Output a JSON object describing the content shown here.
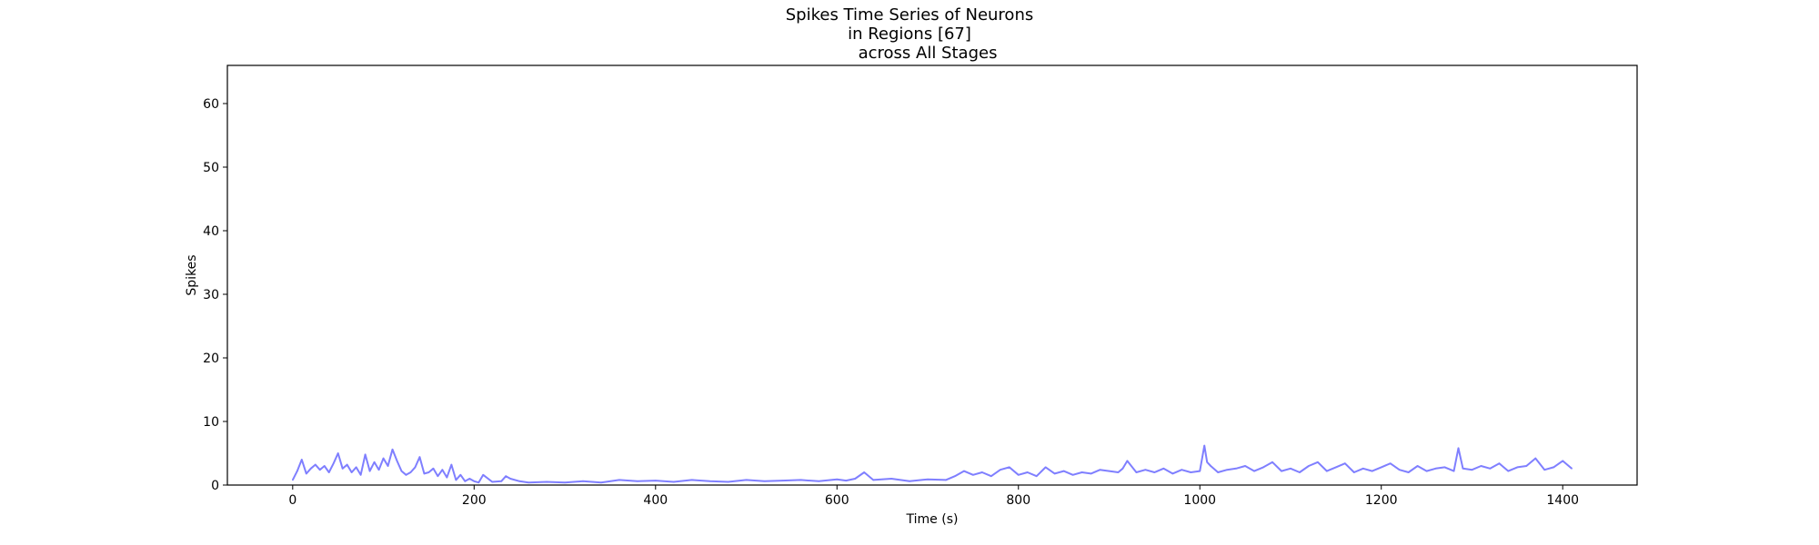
{
  "chart_data": {
    "type": "line",
    "title_lines": [
      "Spikes Time Series of Neurons",
      "in Regions [67]",
      "       across All Stages"
    ],
    "xlabel": "Time (s)",
    "ylabel": "Spikes",
    "xlim": [
      -72,
      1482
    ],
    "ylim": [
      0,
      66
    ],
    "xticks": [
      0,
      200,
      400,
      600,
      800,
      1000,
      1200,
      1400
    ],
    "yticks": [
      0,
      10,
      20,
      30,
      40,
      50,
      60
    ],
    "grid": false,
    "legend": "none",
    "series": [
      {
        "color": "#7f7fff",
        "x": [
          0,
          5,
          10,
          15,
          20,
          25,
          30,
          35,
          40,
          45,
          50,
          55,
          60,
          65,
          70,
          75,
          80,
          85,
          90,
          95,
          100,
          105,
          110,
          115,
          120,
          125,
          130,
          135,
          140,
          145,
          150,
          155,
          160,
          165,
          170,
          175,
          180,
          185,
          190,
          195,
          200,
          205,
          210,
          220,
          230,
          235,
          240,
          250,
          260,
          280,
          300,
          320,
          340,
          360,
          380,
          400,
          420,
          440,
          460,
          480,
          500,
          520,
          540,
          560,
          580,
          600,
          610,
          620,
          630,
          640,
          660,
          680,
          700,
          720,
          730,
          740,
          750,
          760,
          770,
          780,
          790,
          800,
          810,
          820,
          830,
          840,
          850,
          860,
          870,
          880,
          890,
          900,
          910,
          915,
          920,
          930,
          940,
          950,
          960,
          970,
          980,
          990,
          1000,
          1005,
          1008,
          1012,
          1020,
          1030,
          1040,
          1050,
          1060,
          1070,
          1080,
          1090,
          1100,
          1110,
          1120,
          1130,
          1140,
          1150,
          1160,
          1170,
          1180,
          1190,
          1200,
          1210,
          1220,
          1230,
          1240,
          1250,
          1260,
          1270,
          1280,
          1285,
          1290,
          1300,
          1310,
          1320,
          1330,
          1340,
          1350,
          1360,
          1370,
          1380,
          1390,
          1400,
          1405,
          1410
        ],
        "y": [
          0.8,
          2.2,
          4.0,
          1.8,
          2.6,
          3.2,
          2.4,
          3.0,
          2.0,
          3.4,
          5.0,
          2.6,
          3.2,
          2.0,
          2.8,
          1.6,
          4.8,
          2.2,
          3.6,
          2.4,
          4.2,
          3.0,
          5.6,
          3.8,
          2.2,
          1.6,
          2.0,
          2.8,
          4.4,
          1.8,
          2.0,
          2.6,
          1.4,
          2.4,
          1.2,
          3.2,
          0.8,
          1.6,
          0.6,
          1.0,
          0.6,
          0.4,
          1.6,
          0.5,
          0.6,
          1.4,
          1.0,
          0.6,
          0.4,
          0.5,
          0.4,
          0.6,
          0.4,
          0.8,
          0.6,
          0.7,
          0.5,
          0.8,
          0.6,
          0.5,
          0.8,
          0.6,
          0.7,
          0.8,
          0.6,
          0.9,
          0.7,
          1.0,
          2.0,
          0.8,
          1.0,
          0.6,
          0.9,
          0.8,
          1.4,
          2.2,
          1.6,
          2.0,
          1.4,
          2.4,
          2.8,
          1.6,
          2.0,
          1.4,
          2.8,
          1.8,
          2.2,
          1.6,
          2.0,
          1.8,
          2.4,
          2.2,
          2.0,
          2.6,
          3.8,
          2.0,
          2.4,
          2.0,
          2.6,
          1.8,
          2.4,
          2.0,
          2.2,
          6.2,
          3.6,
          3.0,
          2.0,
          2.4,
          2.6,
          3.0,
          2.2,
          2.8,
          3.6,
          2.2,
          2.6,
          2.0,
          3.0,
          3.6,
          2.2,
          2.8,
          3.4,
          2.0,
          2.6,
          2.2,
          2.8,
          3.4,
          2.4,
          2.0,
          3.0,
          2.2,
          2.6,
          2.8,
          2.2,
          5.8,
          2.6,
          2.4,
          3.0,
          2.6,
          3.4,
          2.2,
          2.8,
          3.0,
          4.2,
          2.4,
          2.8,
          3.8,
          3.2,
          2.6
        ]
      }
    ]
  }
}
